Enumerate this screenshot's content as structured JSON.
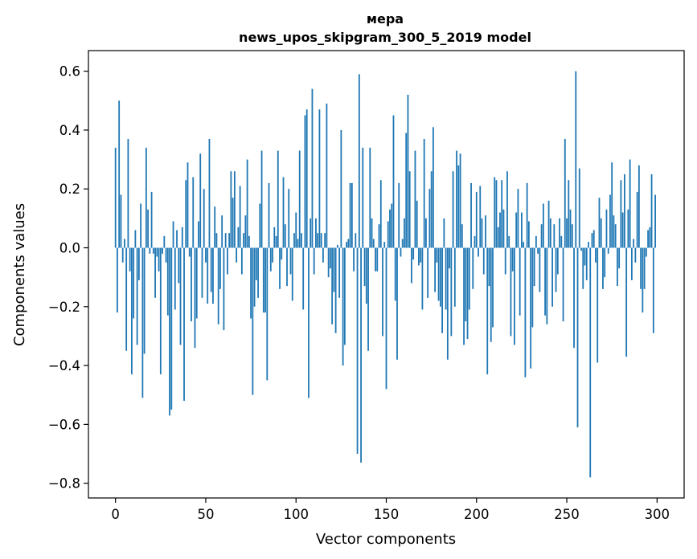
{
  "chart_data": {
    "type": "bar",
    "title": "мера\nnews_upos_skipgram_300_5_2019 model",
    "title_lines": [
      "мера",
      "news_upos_skipgram_300_5_2019 model"
    ],
    "xlabel": "Vector components",
    "ylabel": "Components values",
    "xlim": [
      -15,
      315
    ],
    "ylim": [
      -0.85,
      0.67
    ],
    "xticks": [
      0,
      50,
      100,
      150,
      200,
      250,
      300
    ],
    "xtick_labels": [
      "0",
      "50",
      "100",
      "150",
      "200",
      "250",
      "300"
    ],
    "yticks": [
      0.6,
      0.4,
      0.2,
      0.0,
      -0.2,
      -0.4,
      -0.6,
      -0.8
    ],
    "ytick_labels": [
      "0.6",
      "0.4",
      "0.2",
      "0.0",
      "−0.2",
      "−0.4",
      "−0.6",
      "−0.8"
    ],
    "bar_color": "#1f77b4",
    "grid": false,
    "legend": "none",
    "x": [
      0,
      1,
      2,
      3,
      4,
      5,
      6,
      7,
      8,
      9,
      10,
      11,
      12,
      13,
      14,
      15,
      16,
      17,
      18,
      19,
      20,
      21,
      22,
      23,
      24,
      25,
      26,
      27,
      28,
      29,
      30,
      31,
      32,
      33,
      34,
      35,
      36,
      37,
      38,
      39,
      40,
      41,
      42,
      43,
      44,
      45,
      46,
      47,
      48,
      49,
      50,
      51,
      52,
      53,
      54,
      55,
      56,
      57,
      58,
      59,
      60,
      61,
      62,
      63,
      64,
      65,
      66,
      67,
      68,
      69,
      70,
      71,
      72,
      73,
      74,
      75,
      76,
      77,
      78,
      79,
      80,
      81,
      82,
      83,
      84,
      85,
      86,
      87,
      88,
      89,
      90,
      91,
      92,
      93,
      94,
      95,
      96,
      97,
      98,
      99,
      100,
      101,
      102,
      103,
      104,
      105,
      106,
      107,
      108,
      109,
      110,
      111,
      112,
      113,
      114,
      115,
      116,
      117,
      118,
      119,
      120,
      121,
      122,
      123,
      124,
      125,
      126,
      127,
      128,
      129,
      130,
      131,
      132,
      133,
      134,
      135,
      136,
      137,
      138,
      139,
      140,
      141,
      142,
      143,
      144,
      145,
      146,
      147,
      148,
      149,
      150,
      151,
      152,
      153,
      154,
      155,
      156,
      157,
      158,
      159,
      160,
      161,
      162,
      163,
      164,
      165,
      166,
      167,
      168,
      169,
      170,
      171,
      172,
      173,
      174,
      175,
      176,
      177,
      178,
      179,
      180,
      181,
      182,
      183,
      184,
      185,
      186,
      187,
      188,
      189,
      190,
      191,
      192,
      193,
      194,
      195,
      196,
      197,
      198,
      199,
      200,
      201,
      202,
      203,
      204,
      205,
      206,
      207,
      208,
      209,
      210,
      211,
      212,
      213,
      214,
      215,
      216,
      217,
      218,
      219,
      220,
      221,
      222,
      223,
      224,
      225,
      226,
      227,
      228,
      229,
      230,
      231,
      232,
      233,
      234,
      235,
      236,
      237,
      238,
      239,
      240,
      241,
      242,
      243,
      244,
      245,
      246,
      247,
      248,
      249,
      250,
      251,
      252,
      253,
      254,
      255,
      256,
      257,
      258,
      259,
      260,
      261,
      262,
      263,
      264,
      265,
      266,
      267,
      268,
      269,
      270,
      271,
      272,
      273,
      274,
      275,
      276,
      277,
      278,
      279,
      280,
      281,
      282,
      283,
      284,
      285,
      286,
      287,
      288,
      289,
      290,
      291,
      292,
      293,
      294,
      295,
      296,
      297,
      298,
      299
    ],
    "values": [
      0.34,
      -0.22,
      0.5,
      0.18,
      -0.05,
      0.03,
      -0.35,
      0.37,
      -0.08,
      -0.43,
      -0.24,
      0.06,
      -0.33,
      -0.11,
      0.15,
      -0.51,
      -0.36,
      0.34,
      0.13,
      -0.02,
      0.19,
      -0.02,
      -0.17,
      -0.03,
      -0.08,
      -0.43,
      -0.02,
      0.04,
      -0.05,
      -0.23,
      -0.57,
      -0.55,
      0.09,
      -0.21,
      0.06,
      -0.12,
      -0.33,
      0.07,
      -0.52,
      0.23,
      0.29,
      -0.03,
      -0.25,
      0.24,
      -0.34,
      -0.24,
      0.09,
      0.32,
      -0.17,
      0.2,
      -0.05,
      -0.19,
      0.37,
      -0.15,
      -0.19,
      0.14,
      0.05,
      -0.26,
      -0.14,
      0.11,
      -0.28,
      0.05,
      -0.09,
      0.05,
      0.26,
      0.17,
      0.26,
      -0.05,
      0.07,
      0.21,
      -0.09,
      0.05,
      0.11,
      0.3,
      0.04,
      -0.24,
      -0.5,
      -0.2,
      -0.11,
      -0.17,
      0.15,
      0.33,
      -0.22,
      -0.22,
      -0.45,
      0.22,
      -0.08,
      -0.05,
      0.07,
      0.04,
      0.33,
      -0.14,
      -0.04,
      0.24,
      0.08,
      -0.13,
      0.2,
      -0.09,
      -0.18,
      0.05,
      0.12,
      0.03,
      0.33,
      0.05,
      -0.21,
      0.45,
      0.47,
      -0.51,
      0.1,
      0.54,
      -0.09,
      0.1,
      0.05,
      0.47,
      0.05,
      -0.05,
      0.05,
      0.49,
      -0.1,
      -0.07,
      -0.26,
      -0.15,
      -0.29,
      0.01,
      -0.17,
      0.4,
      -0.4,
      -0.33,
      0.02,
      0.03,
      0.22,
      0.22,
      -0.08,
      0.05,
      -0.7,
      0.59,
      -0.73,
      0.34,
      -0.13,
      -0.19,
      -0.35,
      0.34,
      0.1,
      0.03,
      -0.08,
      -0.08,
      0.08,
      0.23,
      -0.3,
      0.02,
      -0.48,
      0.09,
      0.13,
      0.15,
      0.45,
      -0.18,
      -0.38,
      0.22,
      -0.03,
      0.03,
      0.1,
      0.39,
      0.52,
      0.26,
      -0.12,
      -0.04,
      0.33,
      0.16,
      -0.06,
      -0.05,
      -0.21,
      0.37,
      0.1,
      -0.17,
      0.2,
      0.26,
      0.41,
      -0.15,
      -0.05,
      -0.18,
      -0.2,
      -0.29,
      0.1,
      -0.21,
      -0.38,
      -0.07,
      -0.3,
      0.26,
      -0.2,
      0.33,
      0.28,
      0.32,
      0.08,
      -0.33,
      -0.25,
      -0.31,
      -0.21,
      0.22,
      -0.14,
      0.04,
      0.19,
      -0.03,
      0.21,
      0.1,
      -0.09,
      0.11,
      -0.43,
      -0.13,
      -0.32,
      -0.27,
      0.24,
      0.23,
      0.07,
      0.12,
      0.23,
      0.13,
      -0.09,
      0.26,
      0.04,
      -0.3,
      -0.08,
      -0.33,
      0.12,
      0.2,
      -0.23,
      0.12,
      0.02,
      -0.44,
      0.22,
      0.09,
      -0.41,
      -0.27,
      -0.13,
      0.04,
      -0.02,
      -0.15,
      0.08,
      0.15,
      -0.23,
      -0.26,
      0.16,
      0.1,
      -0.2,
      0.08,
      -0.15,
      -0.09,
      0.1,
      0.04,
      -0.25,
      0.37,
      0.1,
      0.23,
      0.13,
      0.08,
      -0.34,
      0.6,
      -0.61,
      0.27,
      -0.01,
      -0.14,
      -0.06,
      -0.11,
      0.02,
      -0.78,
      0.05,
      0.06,
      -0.05,
      -0.39,
      0.17,
      0.1,
      -0.14,
      -0.1,
      0.13,
      -0.02,
      0.18,
      0.29,
      0.11,
      0.08,
      -0.13,
      -0.07,
      0.23,
      0.12,
      0.25,
      -0.37,
      0.13,
      0.3,
      -0.11,
      0.03,
      -0.05,
      0.19,
      0.28,
      -0.14,
      -0.22,
      -0.14,
      -0.03,
      0.06,
      0.07,
      0.25,
      -0.29,
      0.18
    ]
  }
}
